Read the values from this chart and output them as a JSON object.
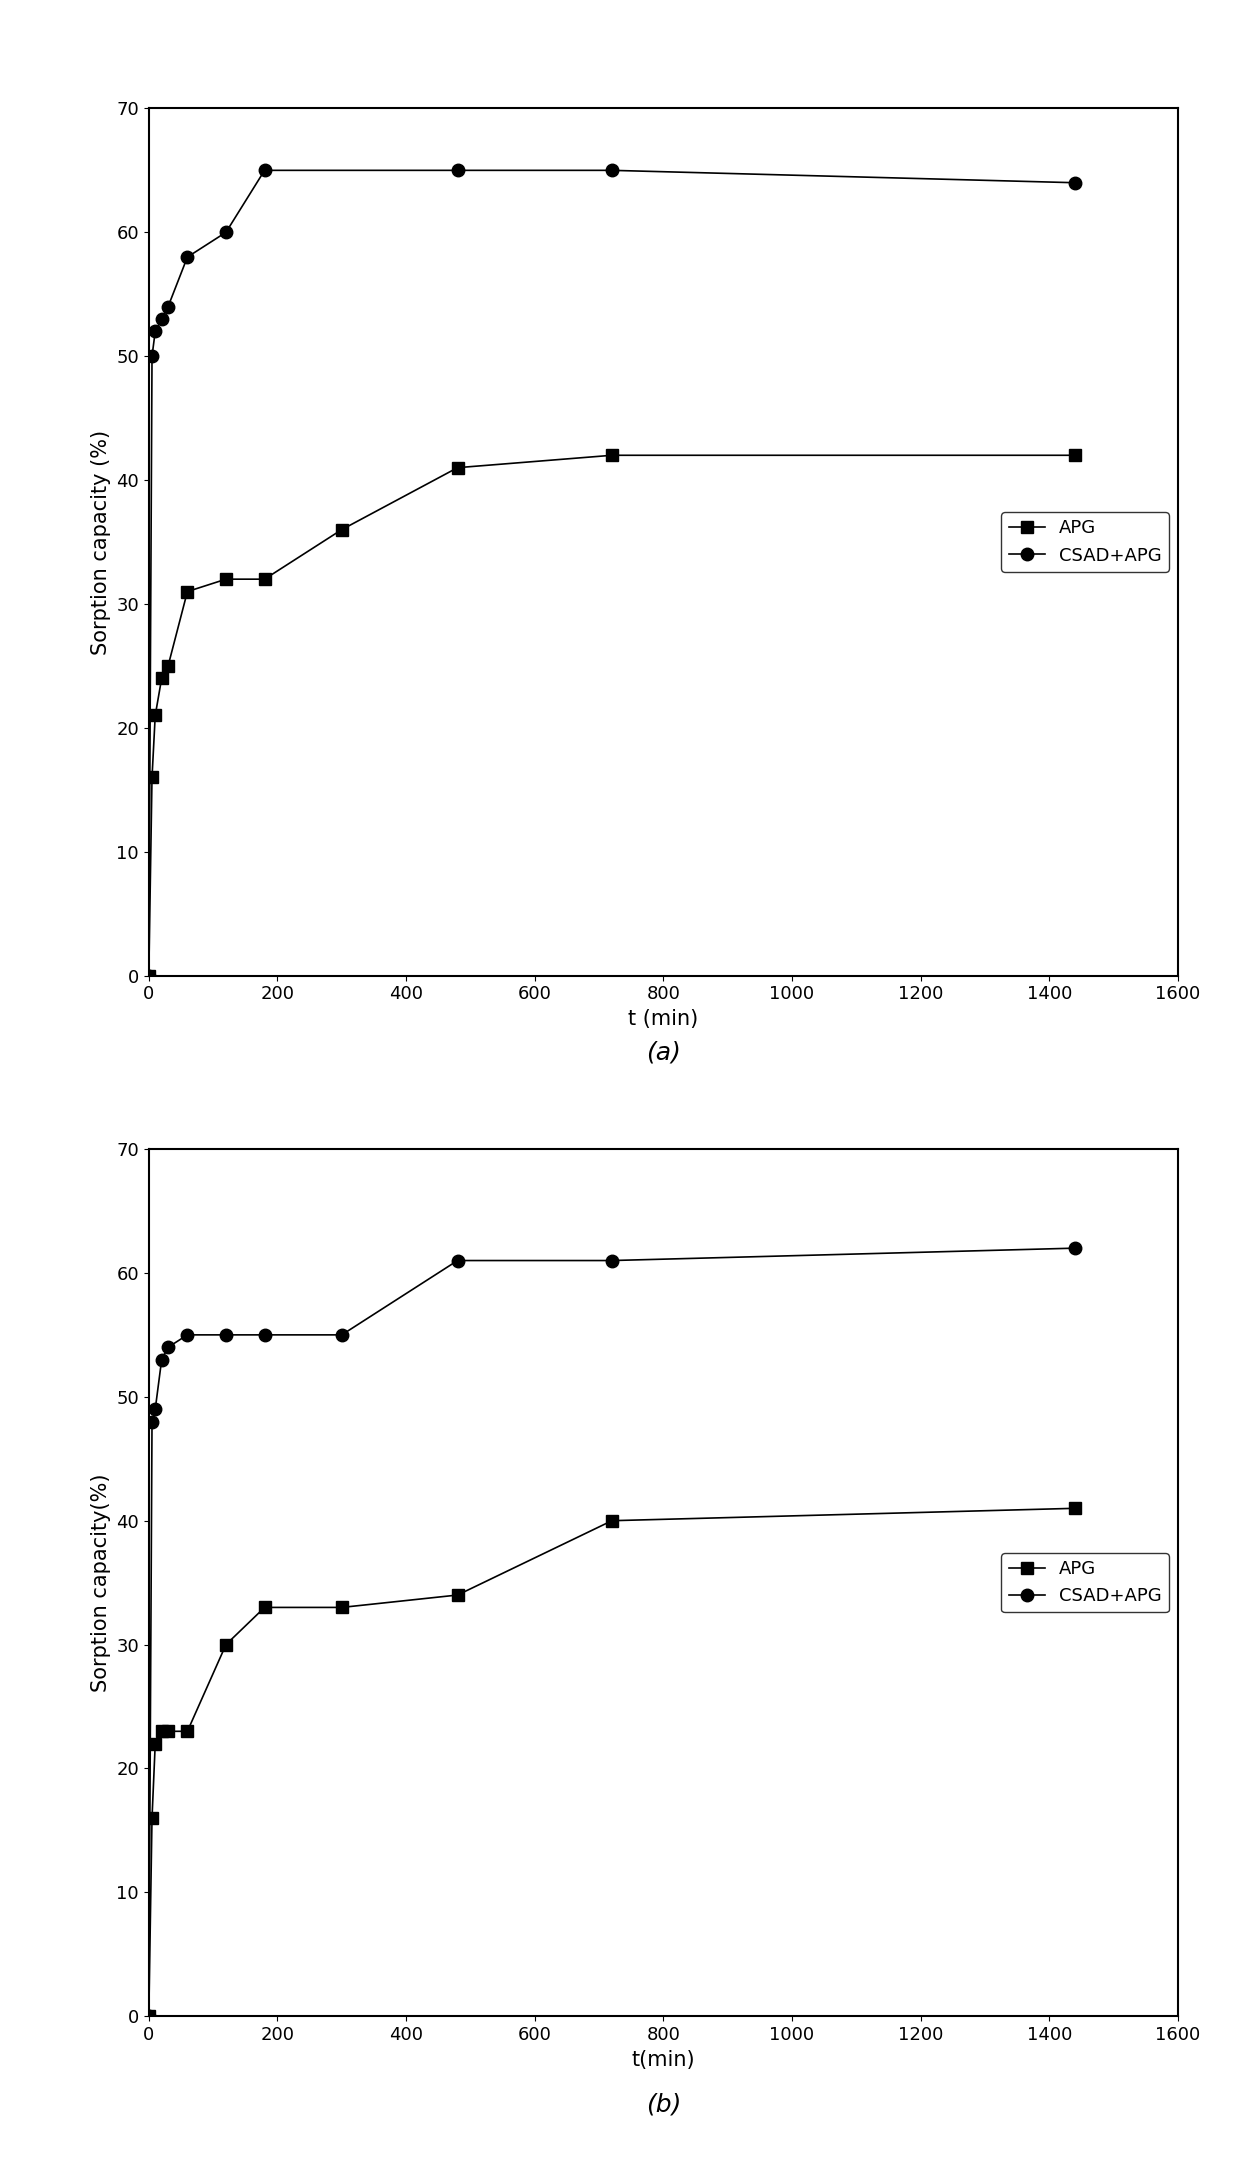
{
  "plot_a": {
    "apg_x": [
      0,
      5,
      10,
      20,
      30,
      60,
      120,
      180,
      300,
      480,
      720,
      1440
    ],
    "apg_y": [
      0,
      16,
      21,
      24,
      25,
      31,
      32,
      32,
      36,
      41,
      42,
      42
    ],
    "csad_x": [
      0,
      5,
      10,
      20,
      30,
      60,
      120,
      180,
      480,
      720,
      1440
    ],
    "csad_y": [
      0,
      50,
      52,
      53,
      54,
      58,
      60,
      65,
      65,
      65,
      64
    ],
    "xlabel": "t (min)",
    "ylabel": "Sorption capacity (%)",
    "label": "(a)",
    "xlim": [
      0,
      1600
    ],
    "ylim": [
      0,
      70
    ],
    "xticks": [
      0,
      200,
      400,
      600,
      800,
      1000,
      1200,
      1400,
      1600
    ],
    "yticks": [
      0,
      10,
      20,
      30,
      40,
      50,
      60,
      70
    ]
  },
  "plot_b": {
    "apg_x": [
      0,
      5,
      10,
      20,
      30,
      60,
      120,
      180,
      300,
      480,
      720,
      1440
    ],
    "apg_y": [
      0,
      16,
      22,
      23,
      23,
      23,
      30,
      33,
      33,
      34,
      40,
      41
    ],
    "csad_x": [
      0,
      5,
      10,
      20,
      30,
      60,
      120,
      180,
      300,
      480,
      720,
      1440
    ],
    "csad_y": [
      0,
      48,
      49,
      53,
      54,
      55,
      55,
      55,
      55,
      61,
      61,
      62
    ],
    "xlabel": "t(min)",
    "ylabel": "Sorption capacity(%)",
    "label": "(b)",
    "xlim": [
      0,
      1600
    ],
    "ylim": [
      0,
      70
    ],
    "xticks": [
      0,
      200,
      400,
      600,
      800,
      1000,
      1200,
      1400,
      1600
    ],
    "yticks": [
      0,
      10,
      20,
      30,
      40,
      50,
      60,
      70
    ]
  },
  "line_color": "#000000",
  "marker_square": "s",
  "marker_circle": "o",
  "marker_size": 9,
  "marker_fill": "#000000",
  "legend_apg": "APG",
  "legend_csad": "CSAD+APG",
  "font_size_label": 15,
  "font_size_tick": 13,
  "font_size_legend": 13,
  "font_size_sublabel": 18,
  "background_color": "#ffffff"
}
